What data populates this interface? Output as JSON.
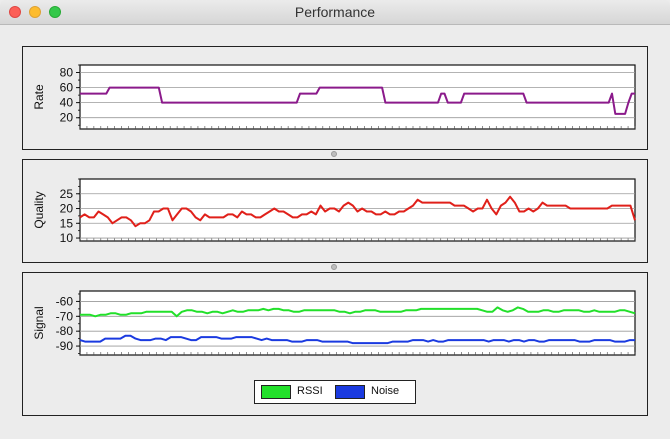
{
  "window": {
    "title": "Performance"
  },
  "colors": {
    "rate": "#8b1a8b",
    "quality": "#e0201a",
    "rssi": "#22e02a",
    "noise": "#1a3ae0"
  },
  "chart_data": [
    {
      "type": "line",
      "ylabel": "Rate",
      "yticks": [
        20,
        40,
        60,
        80
      ],
      "ylim": [
        5,
        90
      ],
      "grid": true,
      "series": [
        {
          "values": [
            52,
            52,
            52,
            52,
            52,
            52,
            52,
            52,
            52,
            60,
            60,
            60,
            60,
            60,
            60,
            60,
            60,
            60,
            60,
            60,
            60,
            60,
            60,
            60,
            60,
            40,
            40,
            40,
            40,
            40,
            40,
            40,
            40,
            40,
            40,
            40,
            40,
            40,
            40,
            40,
            40,
            40,
            40,
            40,
            40,
            40,
            40,
            40,
            40,
            40,
            40,
            40,
            40,
            40,
            40,
            40,
            40,
            40,
            40,
            40,
            40,
            40,
            40,
            40,
            40,
            40,
            40,
            52,
            52,
            52,
            52,
            52,
            52,
            60,
            60,
            60,
            60,
            60,
            60,
            60,
            60,
            60,
            60,
            60,
            60,
            60,
            60,
            60,
            60,
            60,
            60,
            60,
            60,
            40,
            40,
            40,
            40,
            40,
            40,
            40,
            40,
            40,
            40,
            40,
            40,
            40,
            40,
            40,
            40,
            40,
            52,
            52,
            40,
            40,
            40,
            40,
            40,
            52,
            52,
            52,
            52,
            52,
            52,
            52,
            52,
            52,
            52,
            52,
            52,
            52,
            52,
            52,
            52,
            52,
            52,
            52,
            40,
            40,
            40,
            40,
            40,
            40,
            40,
            40,
            40,
            40,
            40,
            40,
            40,
            40,
            40,
            40,
            40,
            40,
            40,
            40,
            40,
            40,
            40,
            40,
            40,
            40,
            52,
            25,
            25,
            25,
            25,
            40,
            52,
            52
          ]
        }
      ]
    },
    {
      "type": "line",
      "ylabel": "Quality",
      "yticks": [
        10,
        15,
        20,
        25
      ],
      "ylim": [
        9,
        30
      ],
      "grid": true,
      "series": [
        {
          "values": [
            17,
            18,
            17,
            17,
            19,
            18,
            17,
            15,
            16,
            17,
            17,
            16,
            14,
            15,
            15,
            16,
            19,
            19,
            20,
            20,
            16,
            18,
            20,
            20,
            19,
            17,
            16,
            18,
            17,
            17,
            17,
            17,
            18,
            18,
            17,
            19,
            18,
            18,
            17,
            17,
            18,
            19,
            20,
            19,
            19,
            18,
            17,
            17,
            18,
            18,
            19,
            18,
            21,
            19,
            20,
            20,
            19,
            21,
            22,
            21,
            19,
            20,
            19,
            19,
            18,
            18,
            19,
            18,
            18,
            19,
            19,
            20,
            21,
            23,
            22,
            22,
            22,
            22,
            22,
            22,
            22,
            21,
            21,
            21,
            20,
            19,
            20,
            20,
            23,
            20,
            18,
            21,
            22,
            24,
            22,
            19,
            19,
            20,
            19,
            20,
            22,
            21,
            21,
            21,
            21,
            21,
            20,
            20,
            20,
            20,
            20,
            20,
            20,
            20,
            20,
            21,
            21,
            21,
            21,
            21,
            16
          ]
        }
      ]
    },
    {
      "type": "line",
      "ylabel": "Signal",
      "yticks": [
        -60,
        -70,
        -80,
        -90
      ],
      "ylim": [
        -96,
        -53
      ],
      "grid": true,
      "series": [
        {
          "name": "RSSI",
          "values": [
            -69,
            -69,
            -69,
            -70,
            -69,
            -69,
            -68,
            -68,
            -69,
            -69,
            -68,
            -68,
            -68,
            -67,
            -67,
            -67,
            -67,
            -67,
            -67,
            -70,
            -67,
            -66,
            -66,
            -67,
            -67,
            -68,
            -67,
            -67,
            -68,
            -67,
            -66,
            -67,
            -67,
            -66,
            -66,
            -66,
            -65,
            -66,
            -65,
            -65,
            -66,
            -66,
            -67,
            -67,
            -66,
            -66,
            -66,
            -66,
            -66,
            -66,
            -66,
            -67,
            -67,
            -68,
            -67,
            -67,
            -66,
            -66,
            -66,
            -67,
            -67,
            -67,
            -67,
            -67,
            -66,
            -66,
            -66,
            -65,
            -65,
            -65,
            -65,
            -65,
            -65,
            -65,
            -65,
            -65,
            -65,
            -65,
            -65,
            -66,
            -67,
            -67,
            -64,
            -66,
            -67,
            -66,
            -64,
            -65,
            -67,
            -67,
            -67,
            -66,
            -66,
            -67,
            -67,
            -66,
            -66,
            -66,
            -66,
            -67,
            -67,
            -66,
            -67,
            -67,
            -67,
            -67,
            -66,
            -66,
            -67,
            -68
          ]
        },
        {
          "name": "Noise",
          "values": [
            -86,
            -87,
            -87,
            -87,
            -87,
            -85,
            -85,
            -85,
            -85,
            -83,
            -83,
            -85,
            -86,
            -86,
            -86,
            -85,
            -85,
            -86,
            -84,
            -84,
            -84,
            -85,
            -86,
            -86,
            -84,
            -84,
            -84,
            -84,
            -85,
            -85,
            -85,
            -84,
            -84,
            -84,
            -84,
            -85,
            -86,
            -85,
            -86,
            -86,
            -86,
            -86,
            -87,
            -87,
            -87,
            -86,
            -86,
            -86,
            -87,
            -87,
            -87,
            -87,
            -87,
            -87,
            -88,
            -88,
            -88,
            -88,
            -88,
            -88,
            -88,
            -88,
            -87,
            -87,
            -87,
            -87,
            -86,
            -86,
            -86,
            -87,
            -86,
            -87,
            -87,
            -86,
            -86,
            -86,
            -86,
            -86,
            -86,
            -86,
            -86,
            -87,
            -86,
            -86,
            -86,
            -87,
            -86,
            -86,
            -87,
            -86,
            -86,
            -87,
            -87,
            -86,
            -86,
            -86,
            -86,
            -86,
            -86,
            -87,
            -87,
            -87,
            -86,
            -86,
            -86,
            -86,
            -87,
            -87,
            -87,
            -86,
            -86
          ]
        }
      ]
    }
  ],
  "legend": [
    {
      "label": "RSSI"
    },
    {
      "label": "Noise"
    }
  ]
}
